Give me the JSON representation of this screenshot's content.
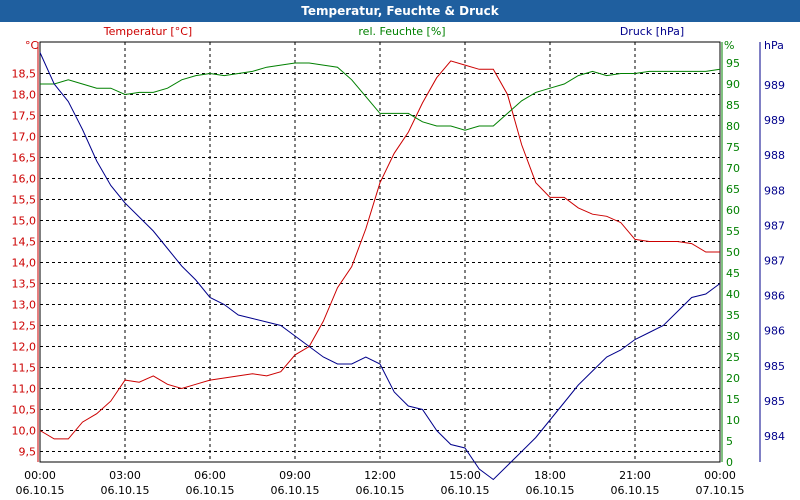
{
  "colors": {
    "title_bar": "#1f5f9f",
    "title_text": "#ffffff",
    "temperature": "#cc0000",
    "humidity": "#008000",
    "pressure": "#00008b",
    "grid": "#000000",
    "axis": "#000000"
  },
  "chart_data": {
    "type": "line",
    "title": "Temperatur, Feuchte & Druck",
    "grid": true,
    "x_ticks": [
      {
        "time": "00:00",
        "date": "06.10.15"
      },
      {
        "time": "03:00",
        "date": "06.10.15"
      },
      {
        "time": "06:00",
        "date": "06.10.15"
      },
      {
        "time": "09:00",
        "date": "06.10.15"
      },
      {
        "time": "12:00",
        "date": "06.10.15"
      },
      {
        "time": "15:00",
        "date": "06.10.15"
      },
      {
        "time": "18:00",
        "date": "06.10.15"
      },
      {
        "time": "21:00",
        "date": "06.10.15"
      },
      {
        "time": "00:00",
        "date": "07.10.15"
      }
    ],
    "xlim_hours": [
      0,
      24
    ],
    "axes": {
      "temperature": {
        "title": "Temperatur [°C]",
        "unit": "°C",
        "ylim": [
          9.25,
          19.25
        ],
        "ticks": [
          "9,5",
          "10,0",
          "10,5",
          "11,0",
          "11,5",
          "12,0",
          "12,5",
          "13,0",
          "13,5",
          "14,0",
          "14,5",
          "15,0",
          "15,5",
          "16,0",
          "16,5",
          "17,0",
          "17,5",
          "18,0",
          "18,5"
        ]
      },
      "humidity": {
        "title": "rel. Feuchte [%]",
        "unit": "%",
        "ylim": [
          0,
          100
        ],
        "ticks": [
          "0",
          "5",
          "10",
          "15",
          "20",
          "25",
          "30",
          "35",
          "40",
          "45",
          "50",
          "55",
          "60",
          "65",
          "70",
          "75",
          "80",
          "85",
          "90",
          "95"
        ]
      },
      "pressure": {
        "title": "Druck [hPa]",
        "unit": "hPa",
        "ylim": [
          983.6,
          989.6
        ],
        "ticks": [
          "984",
          "985",
          "985",
          "986",
          "986",
          "987",
          "987",
          "988",
          "988",
          "989",
          "989"
        ]
      }
    },
    "series": [
      {
        "name": "Temperatur [°C]",
        "axis": "temperature",
        "x": [
          0,
          0.5,
          1,
          1.5,
          2,
          2.5,
          3,
          3.5,
          4,
          4.5,
          5,
          5.5,
          6,
          6.5,
          7,
          7.5,
          8,
          8.5,
          9,
          9.5,
          10,
          10.5,
          11,
          11.5,
          12,
          12.5,
          13,
          13.5,
          14,
          14.5,
          15,
          15.5,
          16,
          16.5,
          17,
          17.5,
          18,
          18.5,
          19,
          19.5,
          20,
          20.5,
          21,
          21.5,
          22,
          22.5,
          23,
          23.5,
          24
        ],
        "values": [
          10.0,
          9.8,
          9.8,
          10.2,
          10.4,
          10.7,
          11.2,
          11.15,
          11.3,
          11.1,
          11.0,
          11.1,
          11.2,
          11.25,
          11.3,
          11.35,
          11.3,
          11.4,
          11.8,
          12.0,
          12.6,
          13.4,
          13.9,
          14.8,
          15.9,
          16.6,
          17.1,
          17.8,
          18.4,
          18.8,
          18.7,
          18.6,
          18.6,
          18.0,
          16.8,
          15.9,
          15.55,
          15.55,
          15.3,
          15.15,
          15.1,
          14.95,
          14.55,
          14.5,
          14.5,
          14.5,
          14.45,
          14.25,
          14.25
        ]
      },
      {
        "name": "rel. Feuchte [%]",
        "axis": "humidity",
        "x": [
          0,
          0.5,
          1,
          1.5,
          2,
          2.5,
          3,
          3.5,
          4,
          4.5,
          5,
          5.5,
          6,
          6.5,
          7,
          7.5,
          8,
          8.5,
          9,
          9.5,
          10,
          10.5,
          11,
          11.5,
          12,
          12.5,
          13,
          13.5,
          14,
          14.5,
          15,
          15.5,
          16,
          16.5,
          17,
          17.5,
          18,
          18.5,
          19,
          19.5,
          20,
          20.5,
          21,
          21.5,
          22,
          22.5,
          23,
          23.5,
          24
        ],
        "values": [
          90,
          90,
          91,
          90,
          89,
          89,
          87.5,
          88,
          88,
          89,
          91,
          92,
          92.5,
          92,
          92.5,
          93,
          94,
          94.5,
          95,
          95,
          94.5,
          94,
          91,
          87,
          83,
          83,
          83,
          81,
          80,
          80,
          79,
          80,
          80,
          83,
          86,
          88,
          89,
          90,
          92,
          93,
          92,
          92.5,
          92.5,
          93,
          93,
          93,
          93,
          93,
          93.5
        ]
      },
      {
        "name": "Druck [hPa]",
        "axis": "pressure",
        "x": [
          0,
          0.5,
          1,
          1.5,
          2,
          2.5,
          3,
          3.5,
          4,
          4.5,
          5,
          5.5,
          6,
          6.5,
          7,
          7.5,
          8,
          8.5,
          9,
          9.5,
          10,
          10.5,
          11,
          11.5,
          12,
          12.5,
          13,
          13.5,
          14,
          14.5,
          15,
          15.5,
          16,
          16.5,
          17,
          17.5,
          18,
          18.5,
          19,
          19.5,
          20,
          20.5,
          21,
          21.5,
          22,
          22.5,
          23,
          23.5,
          24
        ],
        "values": [
          989.45,
          989.0,
          988.75,
          988.35,
          987.9,
          987.55,
          987.3,
          987.1,
          986.9,
          986.65,
          986.4,
          986.2,
          985.95,
          985.85,
          985.7,
          985.65,
          985.6,
          985.55,
          985.4,
          985.25,
          985.1,
          985.0,
          985.0,
          985.1,
          985.0,
          984.6,
          984.4,
          984.35,
          984.05,
          983.85,
          983.8,
          983.5,
          983.35,
          983.55,
          983.75,
          983.95,
          984.2,
          984.45,
          984.7,
          984.9,
          985.1,
          985.2,
          985.35,
          985.45,
          985.55,
          985.75,
          985.95,
          986.0,
          986.15
        ]
      }
    ]
  }
}
